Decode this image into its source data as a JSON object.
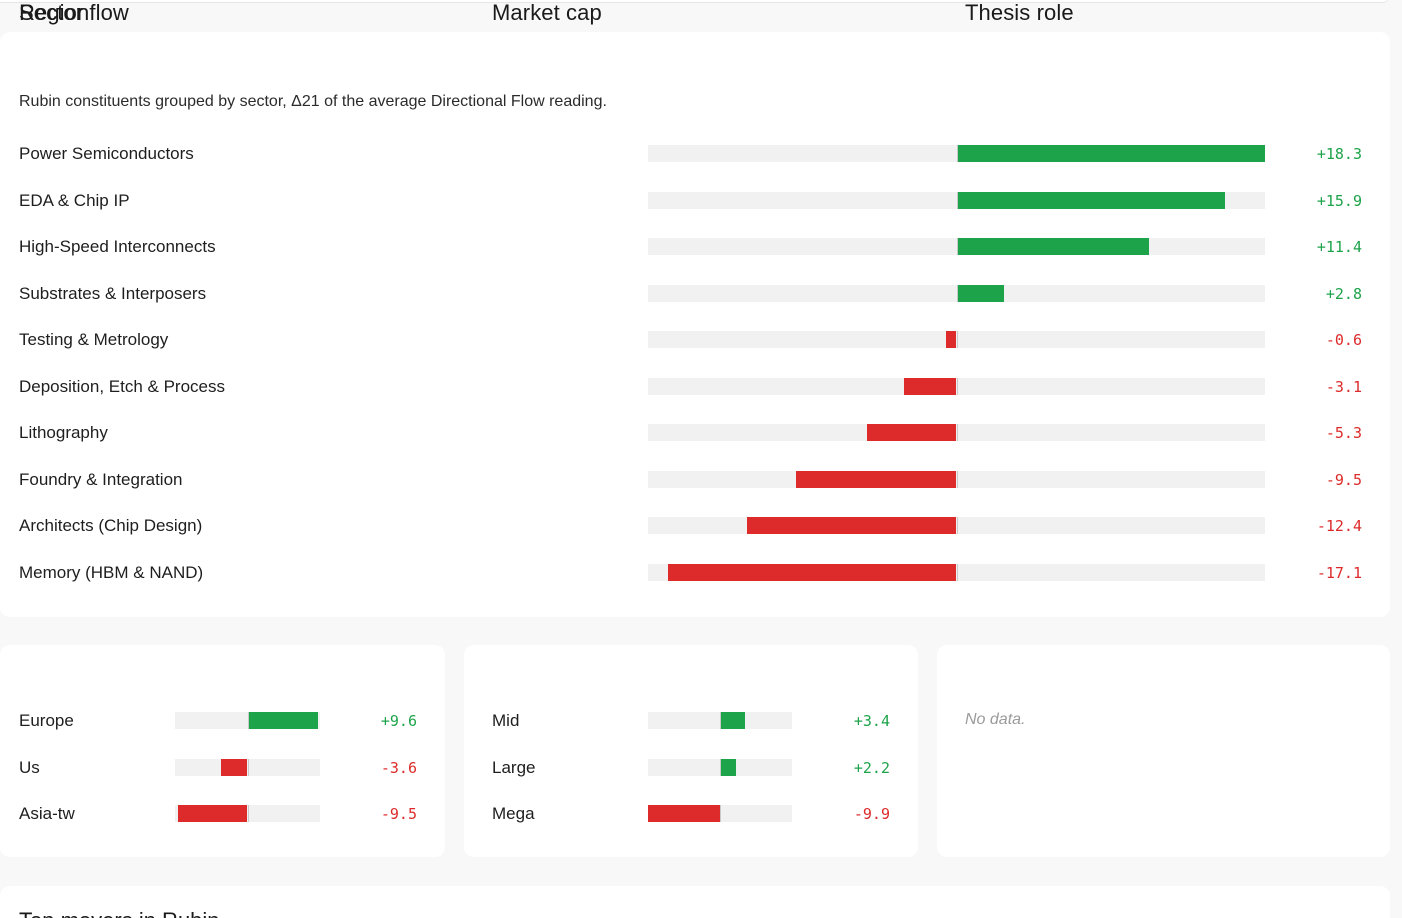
{
  "sector": {
    "title": "Sector flow",
    "subtitle": "Rubin constituents grouped by sector, Δ21 of the average Directional Flow reading.",
    "scale_max": 18.3,
    "rows": [
      {
        "label": "Power Semiconductors",
        "value": 18.3,
        "display": "+18.3"
      },
      {
        "label": "EDA & Chip IP",
        "value": 15.9,
        "display": "+15.9"
      },
      {
        "label": "High-Speed Interconnects",
        "value": 11.4,
        "display": "+11.4"
      },
      {
        "label": "Substrates & Interposers",
        "value": 2.8,
        "display": "+2.8"
      },
      {
        "label": "Testing & Metrology",
        "value": -0.6,
        "display": "-0.6"
      },
      {
        "label": "Deposition, Etch & Process",
        "value": -3.1,
        "display": "-3.1"
      },
      {
        "label": "Lithography",
        "value": -5.3,
        "display": "-5.3"
      },
      {
        "label": "Foundry & Integration",
        "value": -9.5,
        "display": "-9.5"
      },
      {
        "label": "Architects (Chip Design)",
        "value": -12.4,
        "display": "-12.4"
      },
      {
        "label": "Memory (HBM & NAND)",
        "value": -17.1,
        "display": "-17.1"
      }
    ]
  },
  "region": {
    "title": "Region",
    "scale_max": 9.9,
    "rows": [
      {
        "label": "Europe",
        "value": 9.6,
        "display": "+9.6"
      },
      {
        "label": "Us",
        "value": -3.6,
        "display": "-3.6"
      },
      {
        "label": "Asia-tw",
        "value": -9.5,
        "display": "-9.5"
      }
    ]
  },
  "market_cap": {
    "title": "Market cap",
    "scale_max": 9.9,
    "rows": [
      {
        "label": "Mid",
        "value": 3.4,
        "display": "+3.4"
      },
      {
        "label": "Large",
        "value": 2.2,
        "display": "+2.2"
      },
      {
        "label": "Mega",
        "value": -9.9,
        "display": "-9.9"
      }
    ]
  },
  "thesis": {
    "title": "Thesis role",
    "empty_text": "No data."
  },
  "next_section": {
    "title": "Top movers in Rubin"
  },
  "colors": {
    "positive": "#1da34a",
    "negative": "#dd2a2a",
    "track": "#f1f1f1"
  }
}
